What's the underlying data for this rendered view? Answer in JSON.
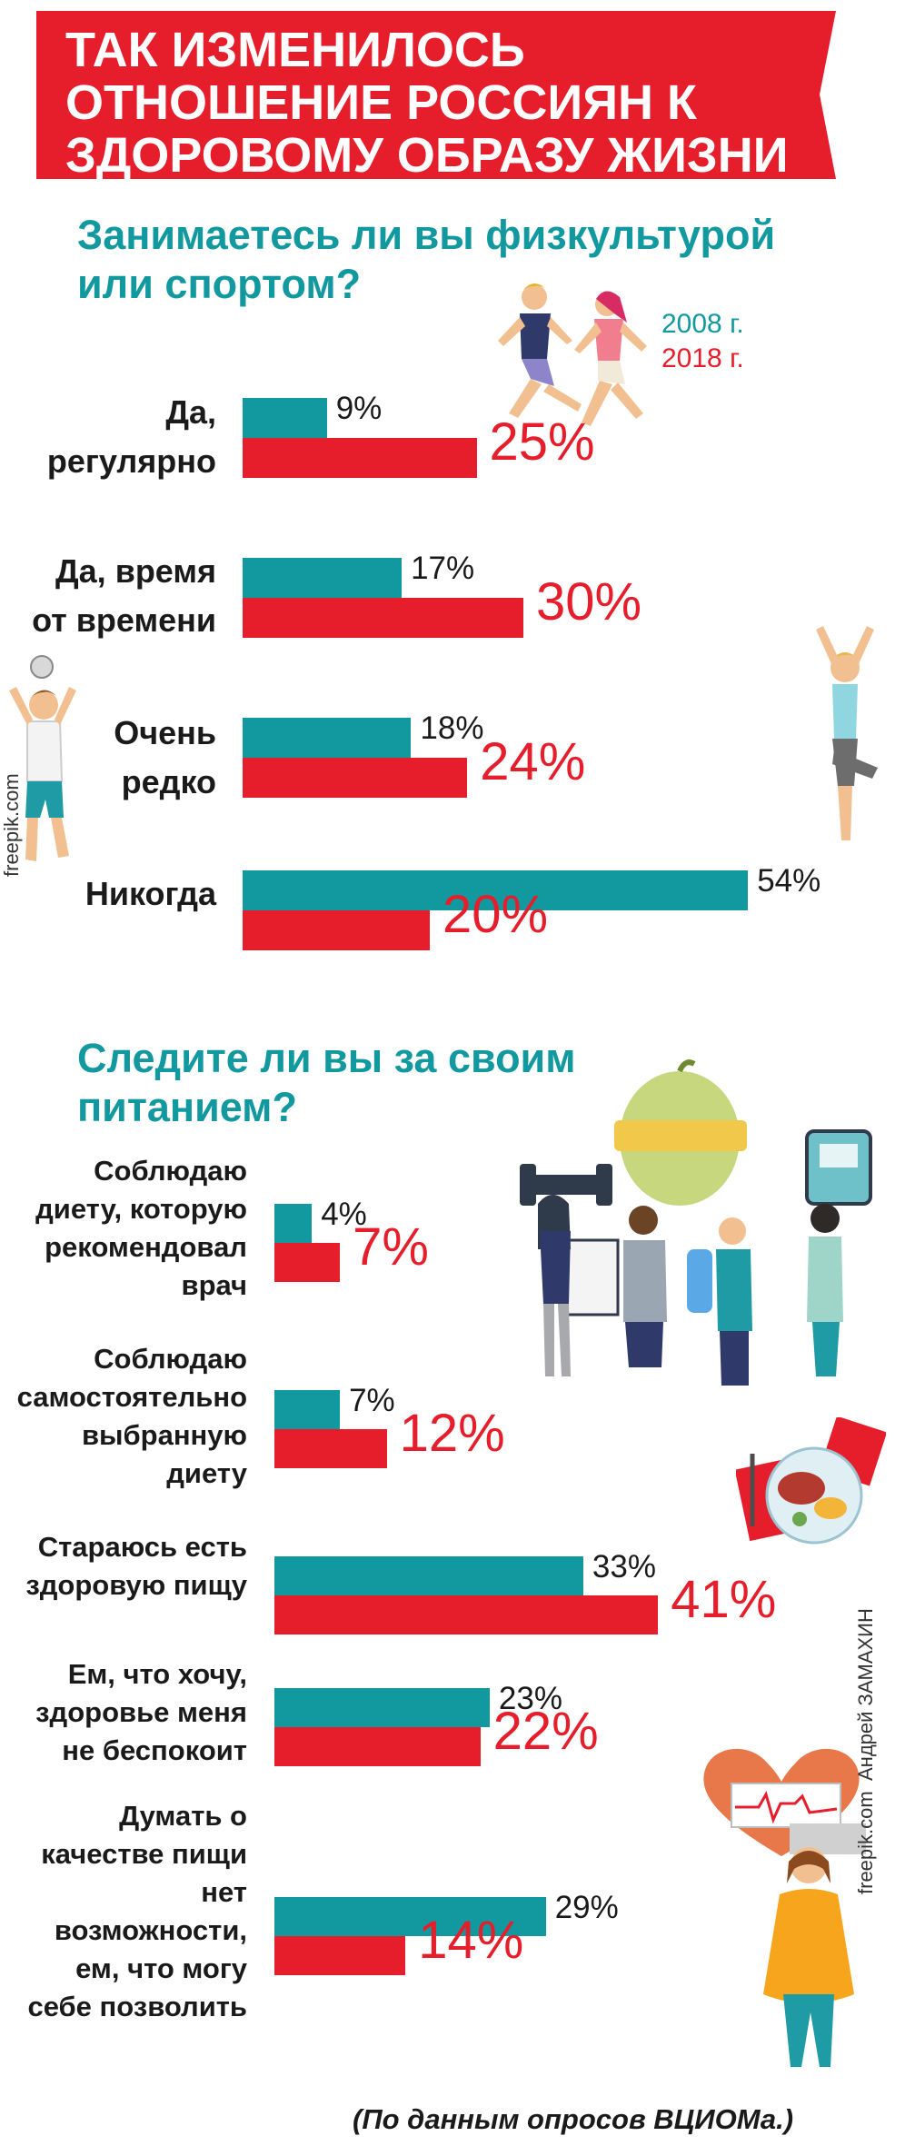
{
  "header": {
    "title": "ТАК ИЗМЕНИЛОСЬ ОТНОШЕНИЕ РОССИЯН К ЗДОРОВОМУ ОБРАЗУ ЖИЗНИ"
  },
  "colors": {
    "y2008": "#12999f",
    "y2018": "#e61e2b",
    "banner": "#e61e2b"
  },
  "legend": {
    "y2008": "2008 г.",
    "y2018": "2018 г."
  },
  "credits": {
    "freepik_left": "freepik.com",
    "freepik_right": "freepik.com",
    "author": "Андрей ЗАМАХИН"
  },
  "source": "(По данным опросов ВЦИОМа.)",
  "chart_data": [
    {
      "type": "bar",
      "title": "Занимаетесь ли вы физкультурой или спортом?",
      "categories": [
        "Да, регулярно",
        "Да, время от времени",
        "Очень редко",
        "Никогда"
      ],
      "series": [
        {
          "name": "2008 г.",
          "values": [
            9,
            17,
            18,
            54
          ]
        },
        {
          "name": "2018 г.",
          "values": [
            25,
            30,
            24,
            20
          ]
        }
      ],
      "value_labels_2008": [
        "9%",
        "17%",
        "18%",
        "54%"
      ],
      "value_labels_2018": [
        "25%",
        "30%",
        "24%",
        "20%"
      ]
    },
    {
      "type": "bar",
      "title": "Следите ли вы за своим питанием?",
      "categories": [
        "Соблюдаю диету, которую рекомендовал врач",
        "Соблюдаю самостоятельно выбранную диету",
        "Стараюсь есть здоровую пищу",
        "Ем, что хочу, здоровье меня не беспокоит",
        "Думать о качестве пищи нет возможности, ем, что могу себе позволить"
      ],
      "series": [
        {
          "name": "2008 г.",
          "values": [
            4,
            7,
            33,
            23,
            29
          ]
        },
        {
          "name": "2018 г.",
          "values": [
            7,
            12,
            41,
            22,
            14
          ]
        }
      ],
      "value_labels_2008": [
        "4%",
        "7%",
        "33%",
        "23%",
        "29%"
      ],
      "value_labels_2018": [
        "7%",
        "12%",
        "41%",
        "22%",
        "14%"
      ]
    }
  ]
}
